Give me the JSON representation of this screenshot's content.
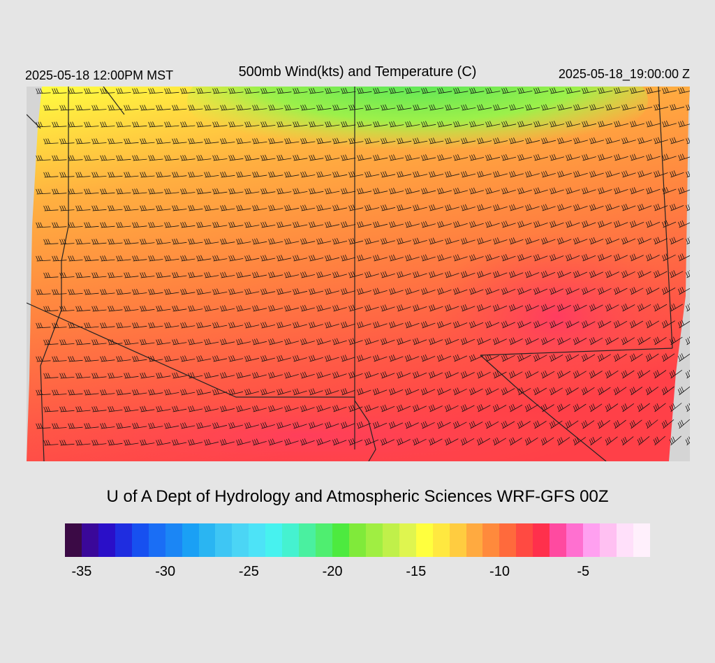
{
  "header": {
    "local_time": "2025-05-18 12:00PM MST",
    "title": "500mb Wind(kts) and Temperature (C)",
    "valid_time": "2025-05-18_19:00:00 Z"
  },
  "credit": "U of A Dept of Hydrology and Atmospheric Sciences WRF-GFS 00Z",
  "colorbar": {
    "colors": [
      "#3b0a45",
      "#3a0899",
      "#2a0fc8",
      "#1f2de0",
      "#1750f0",
      "#1a6ef5",
      "#1b86f5",
      "#1aa0f5",
      "#2ab5f2",
      "#3ec6f4",
      "#4bd5f5",
      "#4de3f7",
      "#47f2ef",
      "#45f2d0",
      "#4af0a0",
      "#4fee70",
      "#4dea3f",
      "#80ea3a",
      "#a0ee42",
      "#c0f04a",
      "#dff54f",
      "#ffff3e",
      "#ffe840",
      "#ffcc40",
      "#ffaa40",
      "#ff8a3c",
      "#ff6a3c",
      "#ff4a42",
      "#ff304c",
      "#ff4aa0",
      "#ff70d0",
      "#ffa0f0",
      "#ffc0f2",
      "#ffe0fa",
      "#fff0fc"
    ],
    "tick_labels": [
      "-35",
      "-30",
      "-25",
      "-20",
      "-15",
      "-10",
      "-5"
    ],
    "tick_values": [
      -35,
      -30,
      -25,
      -20,
      -15,
      -10,
      -5
    ],
    "range": [
      -36,
      -1
    ]
  },
  "map": {
    "background": "#d7d7d7",
    "field_colors": {
      "green": "#4ee65a",
      "yellow": "#f0f050",
      "orange": "#ffa040",
      "red": "#ff4a48",
      "magenta": "#ff4aa0"
    }
  }
}
